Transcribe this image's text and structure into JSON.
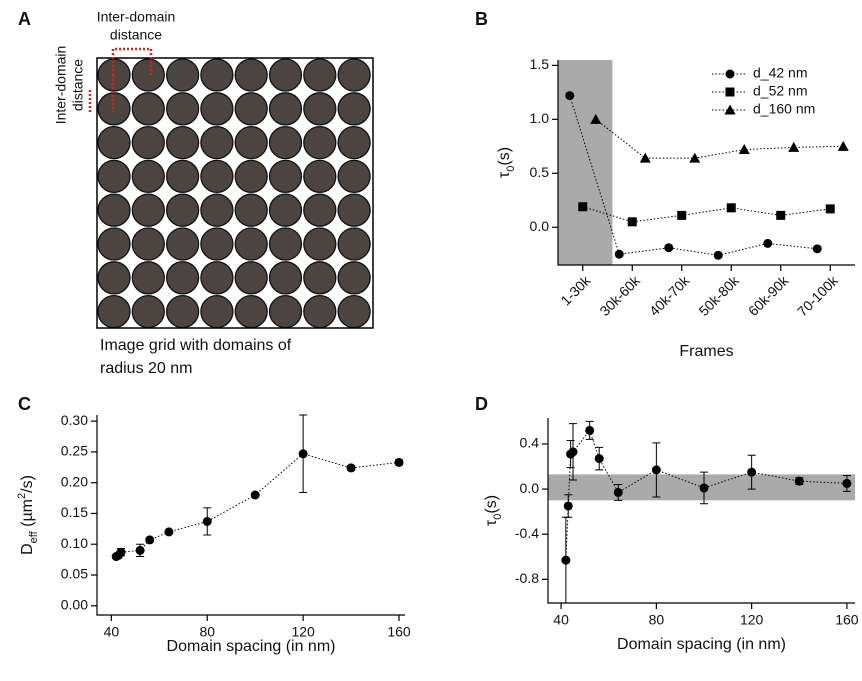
{
  "diagram": {
    "panel_label": "A",
    "top_label": [
      "Inter-domain",
      "distance"
    ],
    "side_label": [
      "Inter-domain",
      "distance"
    ],
    "caption": [
      "Image grid with domains of",
      "radius 20 nm"
    ]
  },
  "chart_data": [
    {
      "type": "line",
      "panel_label": "B",
      "categories": [
        "1-30k",
        "30k-60k",
        "40k-70k",
        "50k-80k",
        "60k-90k",
        "70-100k"
      ],
      "xlabel": "Frames",
      "ylabel": [
        {
          "text": "τ"
        },
        {
          "text": "0",
          "shift": "sub"
        },
        {
          "text": "(s)"
        }
      ],
      "ylim": [
        -0.35,
        1.55
      ],
      "yticks": [
        {
          "value": 0,
          "label": "0.0"
        },
        0.5,
        {
          "value": 1,
          "label": "1.0"
        },
        1.5
      ],
      "legend": "top-right",
      "series": [
        {
          "name": "d_42 nm",
          "color": "#000000",
          "marker": "circle",
          "values": [
            1.22,
            -0.25,
            -0.19,
            -0.26,
            -0.15,
            -0.2
          ]
        },
        {
          "name": "d_52 nm",
          "color": "#000000",
          "marker": "square",
          "values": [
            0.19,
            0.05,
            0.11,
            0.18,
            0.11,
            0.17
          ]
        },
        {
          "name": "d_160 nm",
          "color": "#000000",
          "marker": "triangle",
          "values": [
            1.0,
            0.64,
            0.64,
            0.72,
            0.74,
            0.75
          ]
        }
      ]
    },
    {
      "type": "scatter",
      "panel_label": "C",
      "xlabel": "Domain spacing (in nm)",
      "ylabel": [
        {
          "text": "D"
        },
        {
          "text": "eff",
          "shift": "sub"
        },
        {
          "text": " (µm"
        },
        {
          "text": "2",
          "shift": "super"
        },
        {
          "text": "/s)"
        }
      ],
      "xlim": [
        34,
        162.5
      ],
      "xticks": [
        40,
        80,
        120,
        160
      ],
      "ylim": [
        -0.015,
        0.31
      ],
      "yticks": [
        {
          "value": 0,
          "label": "0.00"
        },
        {
          "value": 0.05,
          "label": "0.05"
        },
        {
          "value": 0.1,
          "label": "0.10"
        },
        {
          "value": 0.15,
          "label": "0.15"
        },
        {
          "value": 0.2,
          "label": "0.20"
        },
        {
          "value": 0.25,
          "label": "0.25"
        },
        {
          "value": 0.3,
          "label": "0.30"
        }
      ],
      "color": "#000000",
      "x": [
        42,
        43,
        44,
        52,
        56,
        64,
        80,
        100,
        120,
        140,
        160
      ],
      "values": [
        0.08,
        0.082,
        0.087,
        0.09,
        0.107,
        0.12,
        0.137,
        0.18,
        0.247,
        0.224,
        0.233
      ],
      "errors": [
        null,
        null,
        0.006,
        0.01,
        0.003,
        null,
        0.022,
        null,
        0.063,
        0.004,
        0.004
      ]
    },
    {
      "type": "scatter",
      "panel_label": "D",
      "xlabel": "Domain spacing (in nm)",
      "ylabel": [
        {
          "text": "τ"
        },
        {
          "text": "0",
          "shift": "sub"
        },
        {
          "text": "(s)"
        }
      ],
      "xlim": [
        34.5,
        163.4
      ],
      "xticks": [
        40,
        80,
        120,
        160
      ],
      "ylim": [
        -1.01,
        0.63
      ],
      "yticks": [
        -0.8,
        -0.4,
        {
          "value": 0,
          "label": "0.0"
        },
        0.4
      ],
      "color": "#000000",
      "band": [
        -0.1,
        0.13
      ],
      "x": [
        42,
        43,
        44,
        45,
        52,
        56,
        64,
        80,
        100,
        120,
        140,
        160
      ],
      "values": [
        -0.63,
        -0.15,
        0.31,
        0.33,
        0.52,
        0.27,
        -0.03,
        0.17,
        0.01,
        0.15,
        0.07,
        0.05
      ],
      "errors": [
        0.38,
        0.1,
        0.12,
        0.25,
        0.08,
        0.1,
        0.07,
        0.24,
        0.14,
        0.15,
        0.03,
        0.07
      ]
    }
  ]
}
